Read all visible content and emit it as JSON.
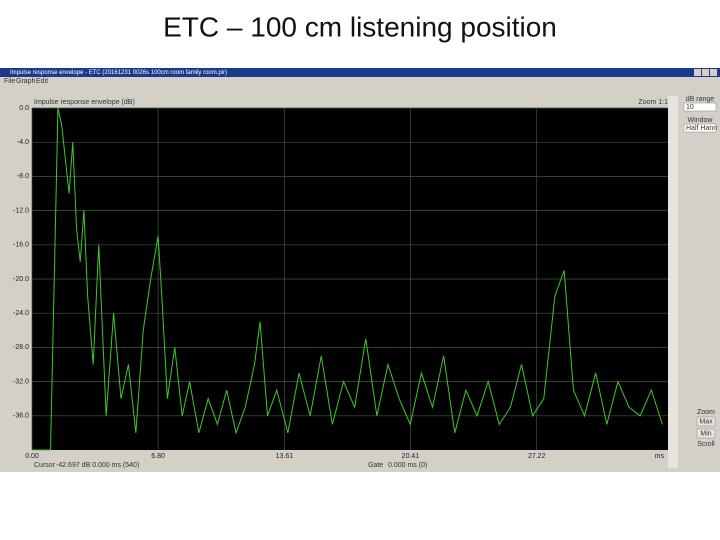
{
  "slide": {
    "title": "ETC – 100 cm listening position"
  },
  "window": {
    "title": "Impulse response envelope - ETC (20161231 0026s 100cm room family room.pir)",
    "menu": [
      "File",
      "Graph",
      "Edit"
    ]
  },
  "chart_data": {
    "type": "line",
    "title": "Impulse response envelope (dB)",
    "annotation": "Zoom 1:1",
    "xlabel": "ms",
    "color": "#3ec82a",
    "grid": true,
    "x": [
      0,
      1.0,
      1.4,
      1.6,
      1.8,
      2.0,
      2.2,
      2.4,
      2.6,
      2.8,
      3.0,
      3.3,
      3.6,
      4.0,
      4.4,
      4.8,
      5.2,
      5.6,
      6.0,
      6.4,
      6.8,
      7.0,
      7.3,
      7.7,
      8.1,
      8.5,
      9.0,
      9.5,
      10.0,
      10.5,
      11.0,
      11.5,
      12.0,
      12.3,
      12.7,
      13.2,
      13.8,
      14.4,
      15.0,
      15.6,
      16.2,
      16.8,
      17.4,
      18.0,
      18.6,
      19.2,
      19.8,
      20.4,
      21.0,
      21.6,
      22.2,
      22.8,
      23.4,
      24.0,
      24.6,
      25.2,
      25.8,
      26.4,
      27.0,
      27.6,
      28.2,
      28.7,
      29.2,
      29.8,
      30.4,
      31.0,
      31.6,
      32.2,
      32.8,
      33.4,
      34.0
    ],
    "values": [
      -40,
      -40,
      0,
      -2,
      -6,
      -10,
      -4,
      -14,
      -18,
      -12,
      -22,
      -30,
      -16,
      -36,
      -24,
      -34,
      -30,
      -38,
      -26,
      -20,
      -15,
      -22,
      -34,
      -28,
      -36,
      -32,
      -38,
      -34,
      -37,
      -33,
      -38,
      -35,
      -30,
      -25,
      -36,
      -33,
      -38,
      -31,
      -36,
      -29,
      -37,
      -32,
      -35,
      -27,
      -36,
      -30,
      -34,
      -37,
      -31,
      -35,
      -29,
      -38,
      -33,
      -36,
      -32,
      -37,
      -35,
      -30,
      -36,
      -34,
      -22,
      -19,
      -33,
      -36,
      -31,
      -37,
      -32,
      -35,
      -36,
      -33,
      -37
    ],
    "xlim": [
      0,
      34.3
    ],
    "ylim": [
      -40,
      0
    ],
    "xticks": [
      {
        "value": 0,
        "label": "0.00"
      },
      {
        "value": 6.8,
        "label": "6.80"
      },
      13.61,
      20.41,
      27.22
    ],
    "yticks": [
      {
        "value": 0,
        "label": "0.0"
      },
      {
        "value": -4,
        "label": "-4.0"
      },
      {
        "value": -8,
        "label": "-8.0"
      },
      {
        "value": -12,
        "label": "-12.0"
      },
      {
        "value": -16,
        "label": "-16.0"
      },
      {
        "value": -20,
        "label": "-20.0"
      },
      {
        "value": -24,
        "label": "-24.0"
      },
      {
        "value": -28,
        "label": "-28.0"
      },
      {
        "value": -32,
        "label": "-32.0"
      },
      {
        "value": -36,
        "label": "-36.0"
      }
    ]
  },
  "side_panel": {
    "range_label": "dB range",
    "range_value": "10",
    "window_label": "Window",
    "window_value": "Half Hann",
    "zoom_label": "Zoom",
    "max": "Max",
    "min": "Min",
    "scroll_label": "Scroll"
  },
  "status": {
    "cursor_label": "Cursor",
    "cursor_value": "-42.697 dB    0.000 ms (540)",
    "gate_label": "Gate",
    "gate_value": "0.000 ms (0)"
  }
}
